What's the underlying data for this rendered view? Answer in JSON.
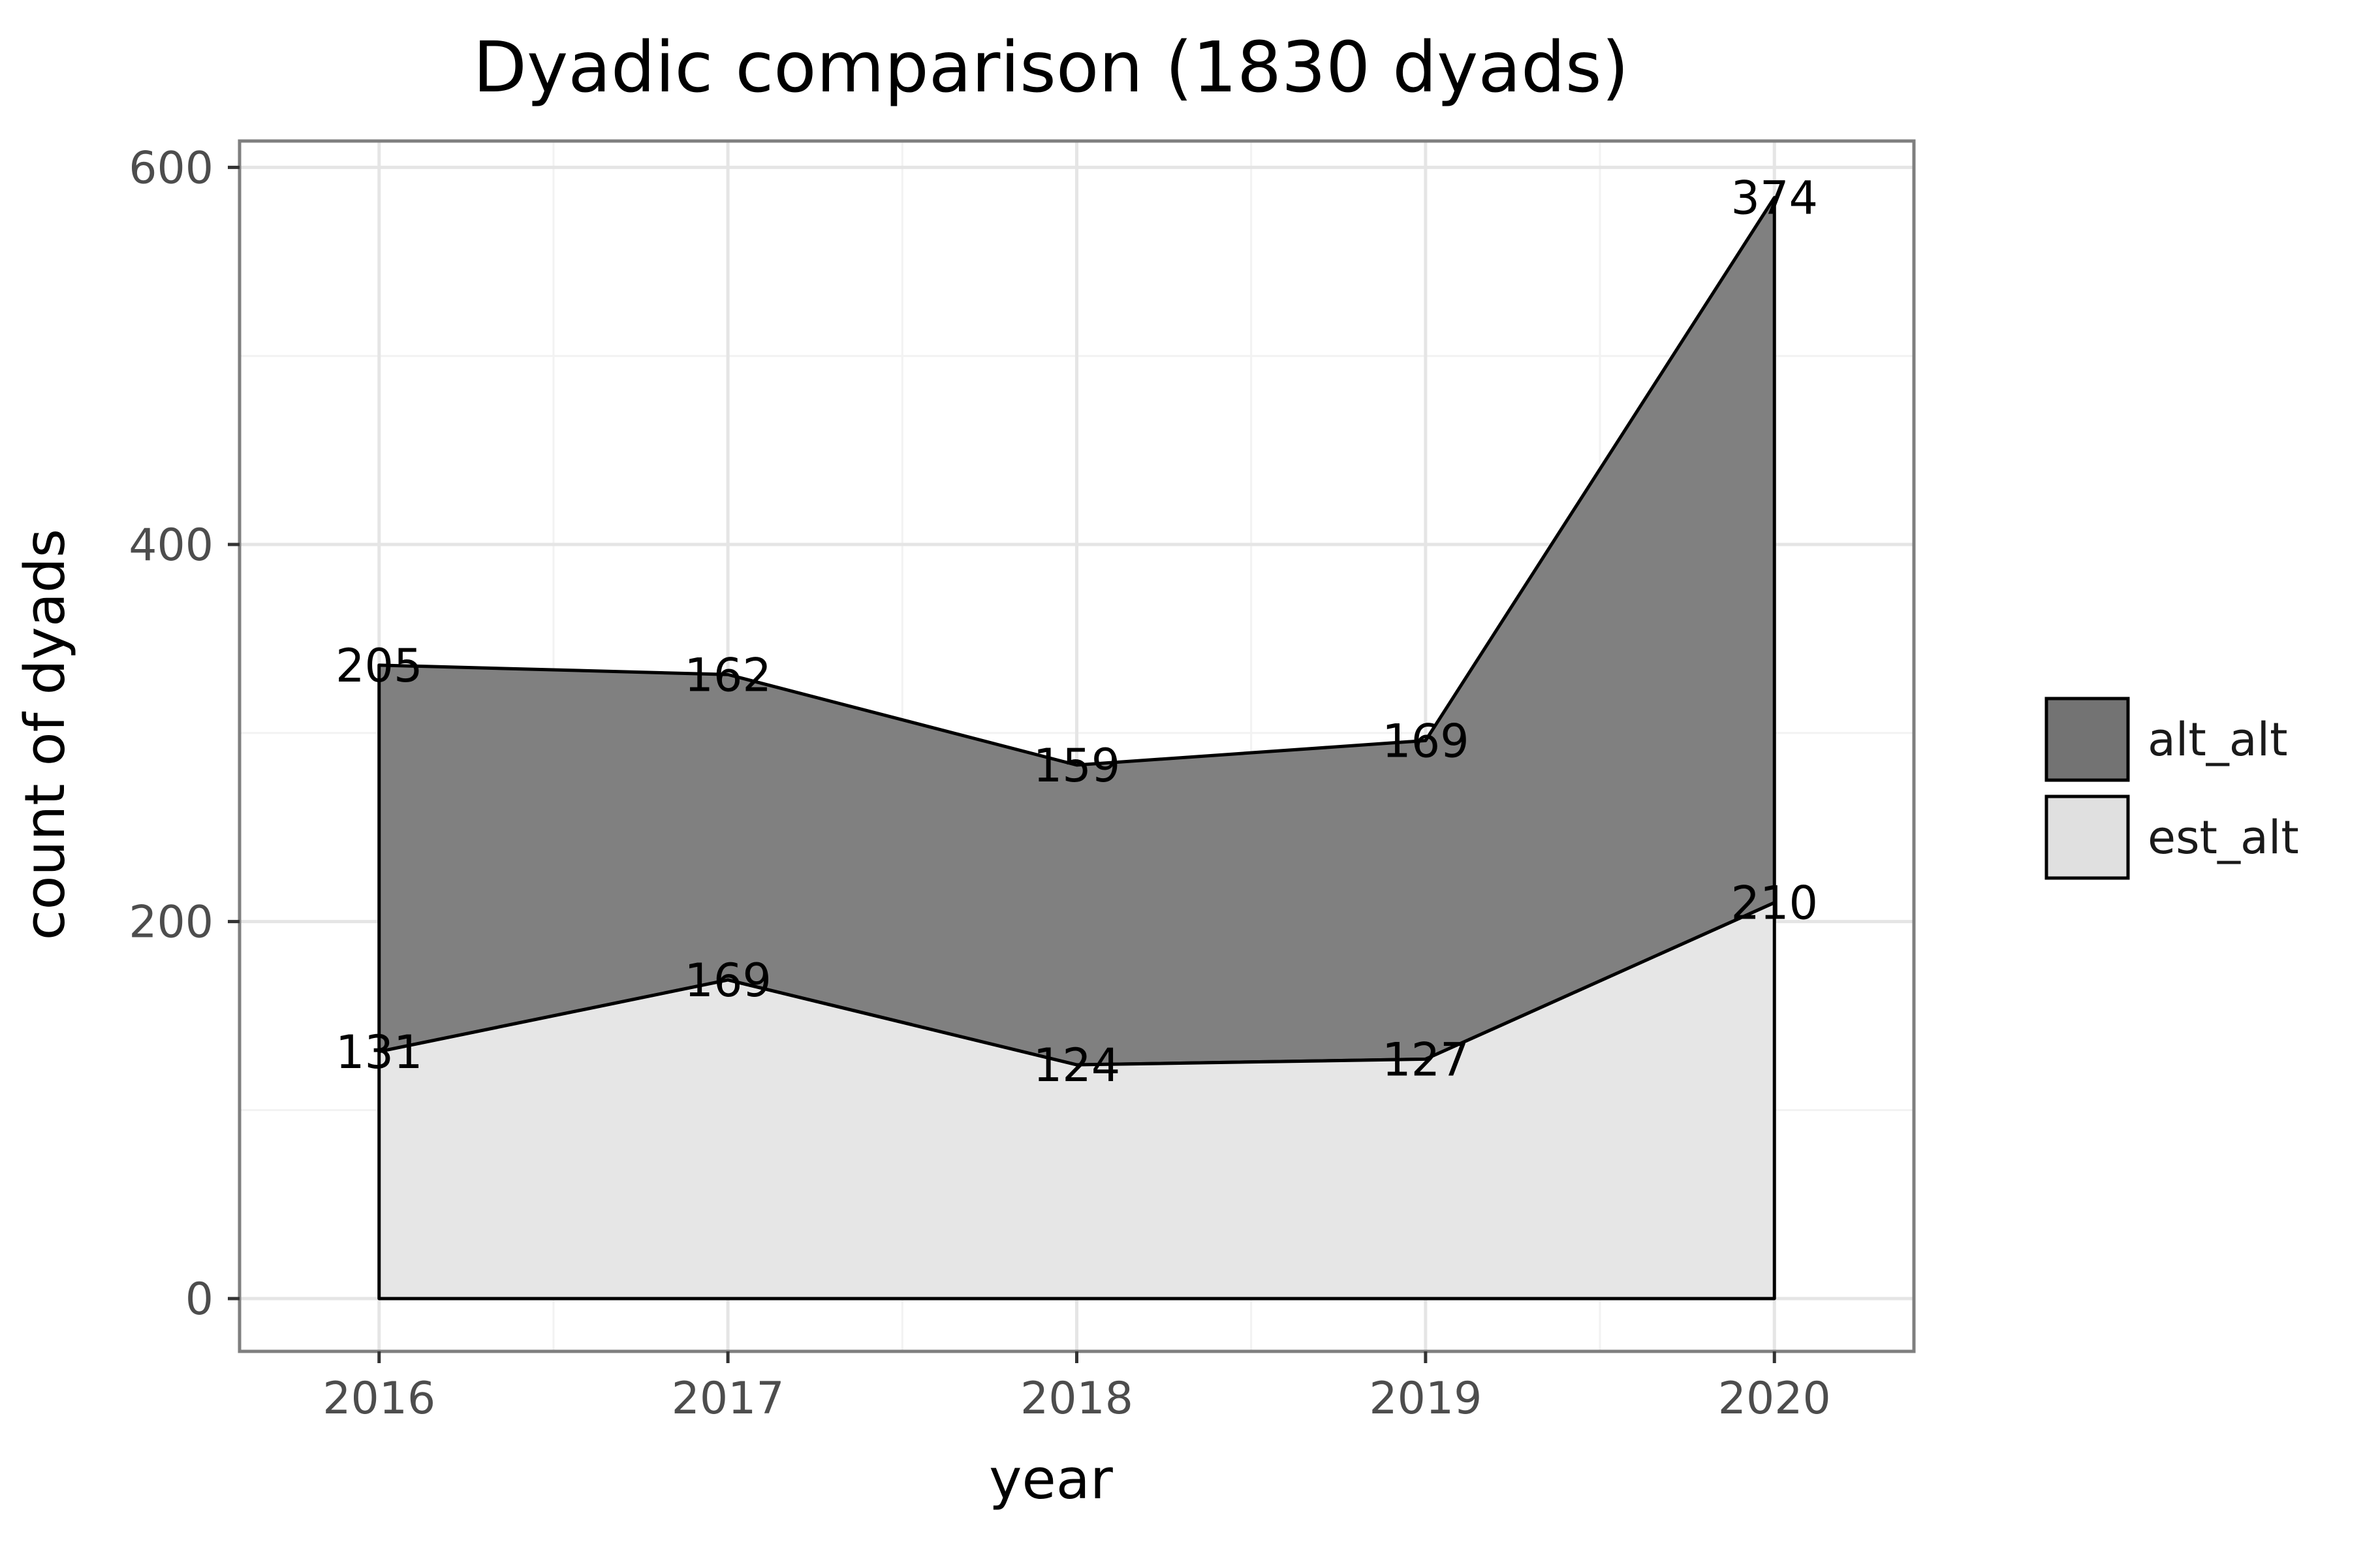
{
  "chart_data": {
    "type": "area",
    "stacked": true,
    "title": "Dyadic comparison (1830 dyads)",
    "xlabel": "year",
    "ylabel": "count of dyads",
    "x": [
      2016,
      2017,
      2018,
      2019,
      2020
    ],
    "x_tick_labels": [
      "2016",
      "2017",
      "2018",
      "2019",
      "2020"
    ],
    "y_ticks": [
      0,
      200,
      400,
      600
    ],
    "y_tick_labels": [
      "0",
      "200",
      "400",
      "600"
    ],
    "xlim": [
      2015.6,
      2020.4
    ],
    "ylim": [
      -28,
      614
    ],
    "grid": true,
    "legend_position": "right",
    "series": [
      {
        "name": "est_alt",
        "values": [
          131,
          169,
          124,
          127,
          210
        ],
        "labels": [
          "131",
          "169",
          "124",
          "127",
          "210"
        ],
        "color": "#e6e6e6"
      },
      {
        "name": "alt_alt",
        "values": [
          205,
          162,
          159,
          169,
          374
        ],
        "labels": [
          "205",
          "162",
          "159",
          "169",
          "374"
        ],
        "color": "#808080"
      }
    ],
    "legend_order": [
      "alt_alt",
      "est_alt"
    ]
  }
}
